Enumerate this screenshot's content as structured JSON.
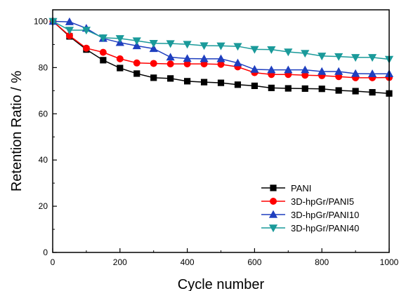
{
  "chart_data": {
    "type": "line",
    "xlabel": "Cycle number",
    "ylabel": "Retention Ratio / %",
    "xlim": [
      0,
      1000
    ],
    "ylim": [
      0,
      105
    ],
    "xticks": [
      0,
      200,
      400,
      600,
      800,
      1000
    ],
    "yticks": [
      0,
      20,
      40,
      60,
      80,
      100
    ],
    "grid": false,
    "legend": "bottom-right",
    "series": [
      {
        "name": "PANI",
        "color": "#000000",
        "marker": "square",
        "x": [
          1,
          50,
          100,
          150,
          200,
          250,
          300,
          350,
          400,
          450,
          500,
          550,
          600,
          650,
          700,
          750,
          800,
          850,
          900,
          950,
          1000
        ],
        "y": [
          100,
          93.5,
          87.8,
          83.2,
          79.8,
          77.4,
          75.6,
          75.3,
          74.1,
          73.7,
          73.4,
          72.6,
          72.1,
          71.2,
          71.0,
          70.9,
          70.8,
          70.1,
          69.8,
          69.3,
          68.8
        ]
      },
      {
        "name": "3D-hpGr/PANI5",
        "color": "#ff0000",
        "marker": "circle",
        "x": [
          1,
          50,
          100,
          150,
          200,
          250,
          300,
          350,
          400,
          450,
          500,
          550,
          600,
          650,
          700,
          750,
          800,
          850,
          900,
          950,
          1000
        ],
        "y": [
          100,
          93.8,
          88.4,
          86.6,
          83.8,
          82.0,
          81.8,
          81.6,
          81.6,
          81.6,
          81.4,
          80.3,
          77.8,
          77.0,
          77.0,
          76.7,
          76.5,
          76.1,
          75.6,
          75.6,
          75.7
        ]
      },
      {
        "name": "3D-hpGr/PANI10",
        "color": "#1f3fbf",
        "marker": "triangle-up",
        "x": [
          1,
          50,
          100,
          150,
          200,
          250,
          300,
          350,
          400,
          450,
          500,
          550,
          600,
          650,
          700,
          750,
          800,
          850,
          900,
          950,
          1000
        ],
        "y": [
          100,
          99.8,
          97.0,
          92.6,
          90.8,
          89.4,
          88.2,
          84.5,
          83.9,
          83.8,
          83.8,
          82.0,
          79.2,
          79.0,
          79.0,
          79.0,
          78.3,
          78.3,
          77.4,
          77.3,
          77.3
        ]
      },
      {
        "name": "3D-hpGr/PANI40",
        "color": "#1a9a9a",
        "marker": "triangle-down",
        "x": [
          1,
          50,
          100,
          150,
          200,
          250,
          300,
          350,
          400,
          450,
          500,
          550,
          600,
          650,
          700,
          750,
          800,
          850,
          900,
          950,
          1000
        ],
        "y": [
          100,
          96.2,
          96.2,
          92.9,
          92.6,
          91.6,
          90.5,
          90.4,
          90.1,
          89.5,
          89.4,
          89.2,
          87.9,
          87.8,
          86.8,
          86.2,
          85.0,
          84.8,
          84.4,
          84.4,
          83.6
        ]
      }
    ]
  }
}
